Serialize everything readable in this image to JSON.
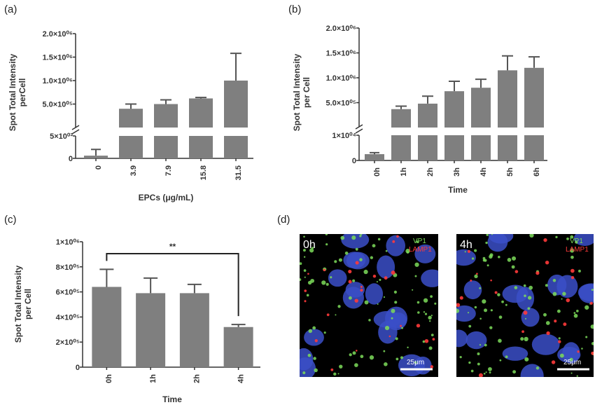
{
  "panels": {
    "a": "(a)",
    "b": "(b)",
    "c": "(c)",
    "d": "(d)"
  },
  "micrographs": [
    {
      "time_label": "0h",
      "channel1": "VP1",
      "channel2": "LAMP1",
      "scale_bar": "25μm"
    },
    {
      "time_label": "4h",
      "channel1": "VP1",
      "channel2": "LAMP1",
      "scale_bar": "25μm"
    }
  ],
  "colors": {
    "bar": "#7f7f7f",
    "vp1": "#7ddc5a",
    "lamp1": "#ff3a3a",
    "nuclei": "#3b4fc8"
  },
  "chart_data": [
    {
      "type": "bar",
      "panel": "a",
      "categories": [
        "0",
        "3.9",
        "7.9",
        "15.8",
        "31.5"
      ],
      "values": [
        600,
        400000,
        500000,
        620000,
        1000000
      ],
      "errors": [
        1400,
        100000,
        90000,
        20000,
        580000
      ],
      "xlabel": "EPCs (μg/mL)",
      "ylabel": "Spot Total Intensity perCell",
      "y_axis_broken": true,
      "lower_ticks": [
        "0",
        "5×10⁰³"
      ],
      "upper_ticks": [
        "5.0×10⁰⁵",
        "1.0×10⁰⁶",
        "1.5×10⁰⁶",
        "2.0×10⁰⁶"
      ],
      "ylim_lower": [
        0,
        5000
      ],
      "ylim_upper": [
        0,
        2000000
      ]
    },
    {
      "type": "bar",
      "panel": "b",
      "categories": [
        "0h",
        "1h",
        "2h",
        "3h",
        "4h",
        "5h",
        "6h"
      ],
      "values": [
        2500,
        370000,
        480000,
        730000,
        800000,
        1150000,
        1200000
      ],
      "errors": [
        600,
        60000,
        150000,
        200000,
        170000,
        290000,
        220000
      ],
      "xlabel": "Time",
      "ylabel": "Spot Total Intensity per Cell",
      "y_axis_broken": true,
      "lower_ticks": [
        "0",
        "1×10⁰⁴"
      ],
      "upper_ticks": [
        "5.0×10⁰⁵",
        "1.0×10⁰⁶",
        "1.5×10⁰⁶",
        "2.0×10⁰⁶"
      ],
      "ylim_lower": [
        0,
        10000
      ],
      "ylim_upper": [
        0,
        2000000
      ]
    },
    {
      "type": "bar",
      "panel": "c",
      "categories": [
        "0h",
        "1h",
        "2h",
        "4h"
      ],
      "values": [
        640000,
        590000,
        590000,
        320000
      ],
      "errors": [
        140000,
        120000,
        70000,
        20000
      ],
      "xlabel": "Time",
      "ylabel": "Spot Total Intensity per Cell",
      "ylim": [
        0,
        1000000
      ],
      "ticks": [
        "0",
        "2×10⁰⁵",
        "4×10⁰⁵",
        "6×10⁰⁵",
        "8×10⁰⁵",
        "1×10⁰⁶"
      ],
      "significance": {
        "from": "0h",
        "to": "4h",
        "label": "**"
      }
    }
  ]
}
